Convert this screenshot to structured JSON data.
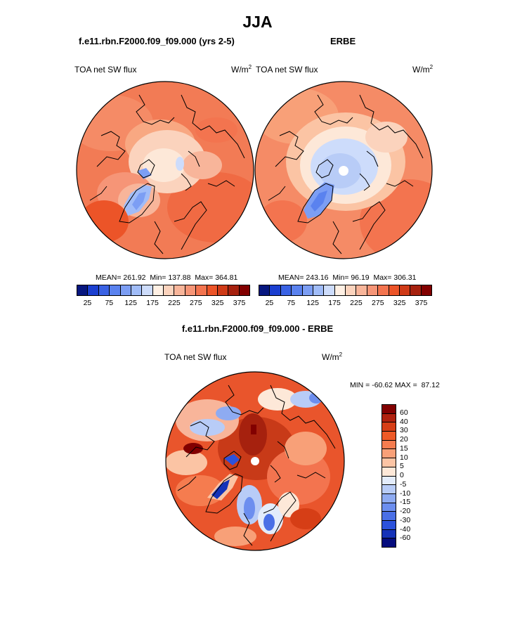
{
  "figure_title": "JJA",
  "panels": [
    {
      "title": "f.e11.rbn.F2000.f09_f09.000 (yrs 2-5)",
      "variable": "TOA net SW flux",
      "units_base": "W/m",
      "units_exp": "2",
      "stats": {
        "mean_label": "MEAN=",
        "mean": "261.92",
        "min_label": "Min=",
        "min": "137.88",
        "max_label": "Max=",
        "max": "364.81"
      }
    },
    {
      "title": "ERBE",
      "variable": "TOA net SW flux",
      "units_base": "W/m",
      "units_exp": "2",
      "stats": {
        "mean_label": "MEAN=",
        "mean": "243.16",
        "min_label": "Min=",
        "min": "96.19",
        "max_label": "Max=",
        "max": "306.31"
      }
    },
    {
      "title": "f.e11.rbn.F2000.f09_f09.000 - ERBE",
      "variable": "TOA net SW flux",
      "units_base": "W/m",
      "units_exp": "2",
      "stats": {
        "min_label": "MIN =",
        "min": "-60.62",
        "max_label": "MAX =",
        "max": "87.12"
      }
    }
  ],
  "colorbar_abs": {
    "colors": [
      "#07177f",
      "#1b3fd0",
      "#3a62e4",
      "#5a82ef",
      "#7c9ef4",
      "#a0bcf8",
      "#cddcfb",
      "#fff0e4",
      "#fbd3bd",
      "#f8b59a",
      "#f69577",
      "#f3744f",
      "#ec5428",
      "#cf3a17",
      "#a6210e",
      "#820000"
    ],
    "ticks": [
      "25",
      "75",
      "125",
      "175",
      "225",
      "275",
      "325",
      "375"
    ]
  },
  "colorbar_diff": {
    "colors": [
      "#820000",
      "#b0210e",
      "#d63e16",
      "#ee5a27",
      "#f57c4f",
      "#f8a078",
      "#fbc4a4",
      "#fde8d8",
      "#e3ecfb",
      "#b8ccf7",
      "#8eabf2",
      "#6c8eef",
      "#4a6fe6",
      "#2c52dc",
      "#1532b8",
      "#050c7d"
    ],
    "ticks": [
      "60",
      "40",
      "30",
      "20",
      "15",
      "10",
      "5",
      "0",
      "-5",
      "-10",
      "-15",
      "-20",
      "-30",
      "-40",
      "-60"
    ]
  },
  "colors": {
    "land_outline": "#000000",
    "panel1_base": "#f27b55",
    "panel2_base": "#f58b66",
    "panel3_base": "#e9552c"
  }
}
